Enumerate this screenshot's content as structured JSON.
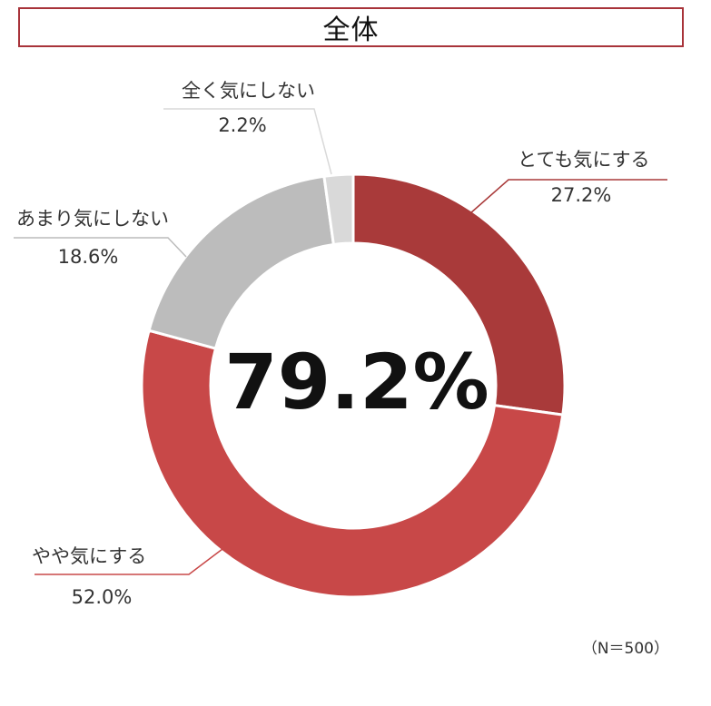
{
  "header": {
    "title": "全体"
  },
  "center_label": "79.2%",
  "note": "（N＝500）",
  "colors": {
    "とても気にする": "#a93a3a",
    "やや気にする": "#c84848",
    "あまり気にしない": "#bcbcbc",
    "全く気にしない": "#d9d9d9",
    "frame": "#a8333a"
  },
  "chart_data": {
    "type": "pie",
    "title": "全体",
    "donut": true,
    "categories": [
      "とても気にする",
      "やや気にする",
      "あまり気にしない",
      "全く気にしない"
    ],
    "values": [
      27.2,
      52.0,
      18.6,
      2.2
    ],
    "value_labels": [
      "27.2%",
      "52.0%",
      "18.6%",
      "2.2%"
    ],
    "center_text": "79.2%",
    "start_angle_deg": 0,
    "direction": "clockwise"
  }
}
